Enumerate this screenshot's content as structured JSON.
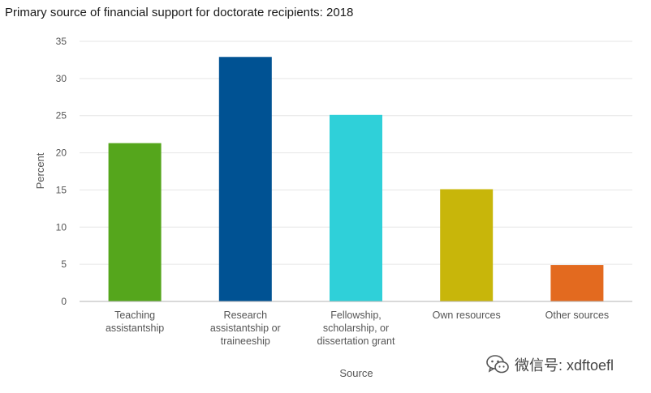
{
  "chart_data": {
    "type": "bar",
    "title": "Primary source of financial support for doctorate recipients: 2018",
    "xlabel": "Source",
    "ylabel": "Percent",
    "ylim": [
      0,
      35
    ],
    "yticks": [
      0,
      5,
      10,
      15,
      20,
      25,
      30,
      35
    ],
    "grid": true,
    "categories": [
      [
        "Teaching",
        "assistantship"
      ],
      [
        "Research",
        "assistantship or",
        "traineeship"
      ],
      [
        "Fellowship,",
        "scholarship, or",
        "dissertation grant"
      ],
      [
        "Own resources"
      ],
      [
        "Other sources"
      ]
    ],
    "values": [
      21.3,
      32.9,
      25.1,
      15.1,
      4.9
    ],
    "colors": [
      "#55a61c",
      "#005293",
      "#2fd0d9",
      "#c8b60a",
      "#e36a1f"
    ]
  },
  "watermark": {
    "text": "微信号: xdftoefl",
    "icon": "wechat-icon"
  }
}
